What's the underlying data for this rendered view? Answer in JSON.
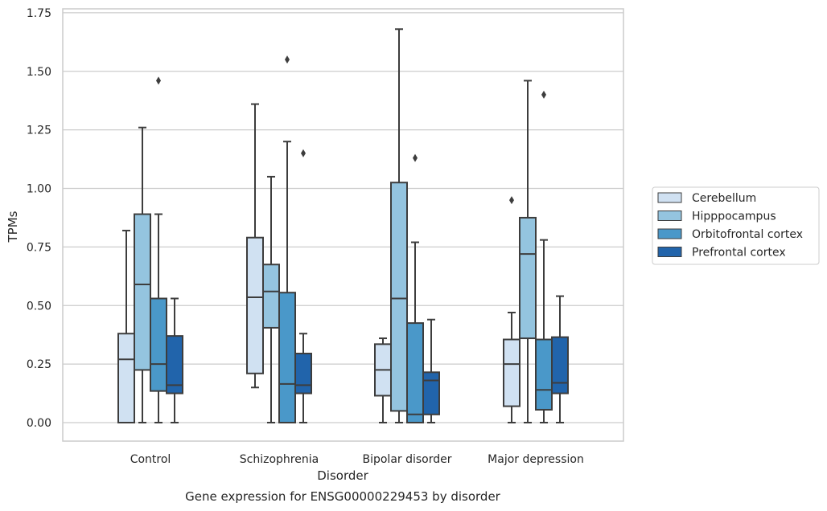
{
  "chart_data": {
    "type": "box",
    "title": "Gene expression for ENSG00000229453 by disorder",
    "xlabel": "Disorder",
    "ylabel": "TPMs",
    "ylim": [
      -0.08,
      1.76
    ],
    "yticks": [
      "0.00",
      "0.25",
      "0.50",
      "0.75",
      "1.00",
      "1.25",
      "1.50",
      "1.75"
    ],
    "ytick_values": [
      0,
      0.25,
      0.5,
      0.75,
      1.0,
      1.25,
      1.5,
      1.75
    ],
    "grid": true,
    "legend_position": "right",
    "categories": [
      "Control",
      "Schizophrenia",
      "Bipolar disorder",
      "Major depression"
    ],
    "series": [
      {
        "name": "Cerebellum",
        "color": "#d0e1f2",
        "boxes": [
          {
            "whislo": 0.0,
            "q1": 0.0,
            "med": 0.27,
            "q3": 0.38,
            "whishi": 0.82,
            "fliers": []
          },
          {
            "whislo": 0.15,
            "q1": 0.21,
            "med": 0.535,
            "q3": 0.79,
            "whishi": 1.36,
            "fliers": []
          },
          {
            "whislo": 0.0,
            "q1": 0.115,
            "med": 0.225,
            "q3": 0.335,
            "whishi": 0.36,
            "fliers": []
          },
          {
            "whislo": 0.0,
            "q1": 0.07,
            "med": 0.25,
            "q3": 0.355,
            "whishi": 0.47,
            "fliers": [
              0.95
            ]
          }
        ]
      },
      {
        "name": "Hipppocampus",
        "color": "#94c4df",
        "boxes": [
          {
            "whislo": 0.0,
            "q1": 0.225,
            "med": 0.59,
            "q3": 0.89,
            "whishi": 1.26,
            "fliers": []
          },
          {
            "whislo": 0.0,
            "q1": 0.405,
            "med": 0.56,
            "q3": 0.675,
            "whishi": 1.05,
            "fliers": []
          },
          {
            "whislo": 0.0,
            "q1": 0.05,
            "med": 0.53,
            "q3": 1.025,
            "whishi": 1.68,
            "fliers": []
          },
          {
            "whislo": 0.0,
            "q1": 0.36,
            "med": 0.72,
            "q3": 0.875,
            "whishi": 1.46,
            "fliers": []
          }
        ]
      },
      {
        "name": "Orbitofrontal cortex",
        "color": "#4a98c9",
        "boxes": [
          {
            "whislo": 0.0,
            "q1": 0.135,
            "med": 0.25,
            "q3": 0.53,
            "whishi": 0.89,
            "fliers": [
              1.46
            ]
          },
          {
            "whislo": 0.0,
            "q1": 0.0,
            "med": 0.165,
            "q3": 0.555,
            "whishi": 1.2,
            "fliers": [
              1.55
            ]
          },
          {
            "whislo": 0.0,
            "q1": 0.0,
            "med": 0.035,
            "q3": 0.425,
            "whishi": 0.77,
            "fliers": [
              1.13
            ]
          },
          {
            "whislo": 0.0,
            "q1": 0.055,
            "med": 0.14,
            "q3": 0.355,
            "whishi": 0.78,
            "fliers": [
              1.4
            ]
          }
        ]
      },
      {
        "name": "Prefrontal cortex",
        "color": "#2164ab",
        "boxes": [
          {
            "whislo": 0.0,
            "q1": 0.125,
            "med": 0.16,
            "q3": 0.37,
            "whishi": 0.53,
            "fliers": []
          },
          {
            "whislo": 0.0,
            "q1": 0.125,
            "med": 0.16,
            "q3": 0.295,
            "whishi": 0.38,
            "fliers": [
              1.15
            ]
          },
          {
            "whislo": 0.0,
            "q1": 0.035,
            "med": 0.18,
            "q3": 0.215,
            "whishi": 0.44,
            "fliers": []
          },
          {
            "whislo": 0.0,
            "q1": 0.125,
            "med": 0.17,
            "q3": 0.365,
            "whishi": 0.54,
            "fliers": []
          }
        ]
      }
    ]
  }
}
